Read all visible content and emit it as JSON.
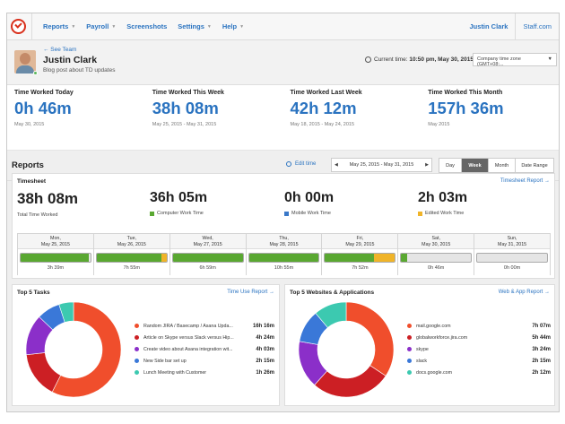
{
  "nav": {
    "items": [
      "Reports",
      "Payroll",
      "Screenshots",
      "Settings",
      "Help"
    ],
    "user": "Justin Clark",
    "company": "Staff.com"
  },
  "profile": {
    "back_link": "← See Team",
    "name": "Justin Clark",
    "status": "Blog post about TD updates",
    "current_time_label": "Current time:",
    "current_time": "10:50 pm, May 30, 2015",
    "timezone": "Company time zone (GMT+08:..."
  },
  "stats": [
    {
      "label": "Time Worked Today",
      "value": "0h 46m",
      "date": "May 30, 2015"
    },
    {
      "label": "Time Worked This Week",
      "value": "38h 08m",
      "date": "May 25, 2015 - May 31, 2015"
    },
    {
      "label": "Time Worked Last Week",
      "value": "42h 12m",
      "date": "May 18, 2015 - May 24, 2015"
    },
    {
      "label": "Time Worked This Month",
      "value": "157h 36m",
      "date": "May 2015"
    }
  ],
  "reports_bar": {
    "title": "Reports",
    "edit_label": "Edit time",
    "date_range": "May 25, 2015 - May 31, 2015",
    "periods": [
      "Day",
      "Week",
      "Month",
      "Date Range"
    ],
    "active_period": "Week"
  },
  "timesheet": {
    "title": "Timesheet",
    "report_link": "Timesheet Report →",
    "totals": [
      {
        "value": "38h 08m",
        "label": "Total Time Worked",
        "color": ""
      },
      {
        "value": "36h 05m",
        "label": "Computer Work Time",
        "color": "#5aa832"
      },
      {
        "value": "0h 00m",
        "label": "Mobile Work Time",
        "color": "#3a78c8"
      },
      {
        "value": "2h 03m",
        "label": "Edited Work Time",
        "color": "#f0b429"
      }
    ],
    "days": [
      {
        "dow": "Mon,",
        "date": "May 25, 2015",
        "total": "3h 39m",
        "computer": 0.98,
        "edited": 0
      },
      {
        "dow": "Tue,",
        "date": "May 26, 2015",
        "total": "7h 55m",
        "computer": 0.93,
        "edited": 0.07
      },
      {
        "dow": "Wed,",
        "date": "May 27, 2015",
        "total": "6h 59m",
        "computer": 1.0,
        "edited": 0
      },
      {
        "dow": "Thu,",
        "date": "May 28, 2015",
        "total": "10h 55m",
        "computer": 1.0,
        "edited": 0
      },
      {
        "dow": "Fri,",
        "date": "May 29, 2015",
        "total": "7h 52m",
        "computer": 0.7,
        "edited": 0.3
      },
      {
        "dow": "Sat,",
        "date": "May 30, 2015",
        "total": "0h 46m",
        "computer": 0.08,
        "edited": 0
      },
      {
        "dow": "Sun,",
        "date": "May 31, 2015",
        "total": "0h 00m",
        "computer": 0,
        "edited": 0
      }
    ]
  },
  "tasks": {
    "title": "Top 5 Tasks",
    "report_link": "Time Use Report →",
    "items": [
      {
        "name": "Random JIRA / Basecamp / Asana Upda...",
        "value": "16h 16m",
        "color": "#f04e2c",
        "share": 0.58
      },
      {
        "name": "Article on Skype versus Slack versus Hip...",
        "value": "4h 24m",
        "color": "#cc1f24",
        "share": 0.16
      },
      {
        "name": "Create video about Asana integration wit...",
        "value": "4h 03m",
        "color": "#8b2fc9",
        "share": 0.14
      },
      {
        "name": "New Side bar set up",
        "value": "2h 15m",
        "color": "#3a78d8",
        "share": 0.08
      },
      {
        "name": "Lunch Meeting with Customer",
        "value": "1h 26m",
        "color": "#3cc9b0",
        "share": 0.05
      }
    ]
  },
  "apps": {
    "title": "Top 5 Websites & Applications",
    "report_link": "Web & App Report →",
    "items": [
      {
        "name": "mail.google.com",
        "value": "7h 07m",
        "color": "#f04e2c",
        "share": 0.34
      },
      {
        "name": "globalworkforce.jira.com",
        "value": "5h 44m",
        "color": "#cc1f24",
        "share": 0.27
      },
      {
        "name": "skype",
        "value": "3h 24m",
        "color": "#8b2fc9",
        "share": 0.16
      },
      {
        "name": "slack",
        "value": "2h 15m",
        "color": "#3a78d8",
        "share": 0.11
      },
      {
        "name": "docs.google.com",
        "value": "2h 12m",
        "color": "#3cc9b0",
        "share": 0.11
      }
    ]
  }
}
